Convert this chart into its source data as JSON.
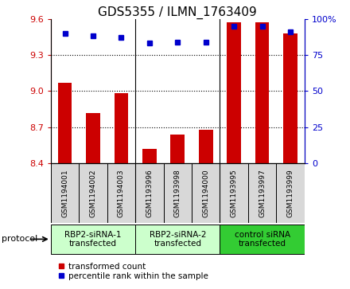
{
  "title": "GDS5355 / ILMN_1763409",
  "samples": [
    "GSM1194001",
    "GSM1194002",
    "GSM1194003",
    "GSM1193996",
    "GSM1193998",
    "GSM1194000",
    "GSM1193995",
    "GSM1193997",
    "GSM1193999"
  ],
  "bar_values": [
    9.07,
    8.82,
    8.98,
    8.52,
    8.64,
    8.68,
    9.57,
    9.57,
    9.48
  ],
  "percentile_values": [
    90,
    88,
    87,
    83,
    84,
    84,
    95,
    95,
    91
  ],
  "ylim_left": [
    8.4,
    9.6
  ],
  "ylim_right": [
    0,
    100
  ],
  "yticks_left": [
    8.4,
    8.7,
    9.0,
    9.3,
    9.6
  ],
  "yticks_right": [
    0,
    25,
    50,
    75,
    100
  ],
  "bar_color": "#cc0000",
  "dot_color": "#0000cc",
  "protocol_groups": [
    {
      "label": "RBP2-siRNA-1\ntransfected",
      "start": 0,
      "end": 3,
      "color": "#ccffcc"
    },
    {
      "label": "RBP2-siRNA-2\ntransfected",
      "start": 3,
      "end": 6,
      "color": "#ccffcc"
    },
    {
      "label": "control siRNA\ntransfected",
      "start": 6,
      "end": 9,
      "color": "#33cc33"
    }
  ],
  "sample_bg_color": "#d8d8d8",
  "legend_items": [
    {
      "label": "transformed count",
      "color": "#cc0000"
    },
    {
      "label": "percentile rank within the sample",
      "color": "#0000cc"
    }
  ],
  "protocol_label": "protocol",
  "title_fontsize": 11,
  "tick_fontsize": 8,
  "sample_fontsize": 6.5,
  "protocol_fontsize": 7.5
}
